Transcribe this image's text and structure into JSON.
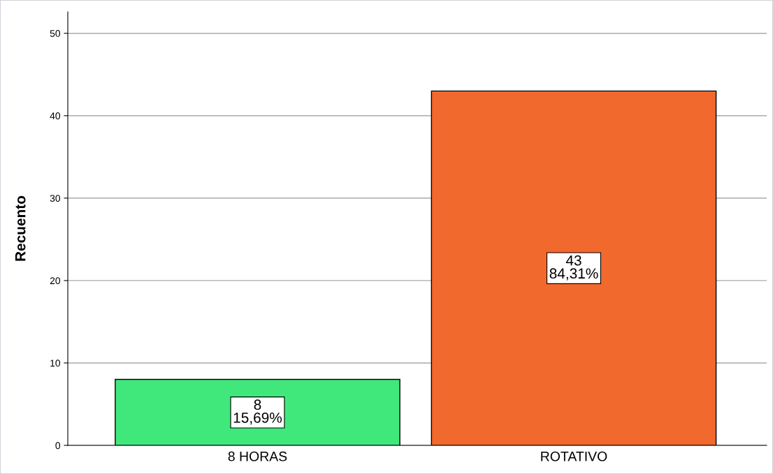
{
  "chart_data": {
    "type": "bar",
    "ylabel": "Recuento",
    "categories": [
      "8 HORAS",
      "ROTATIVO"
    ],
    "values": [
      8,
      43
    ],
    "colors": [
      "#40e87c",
      "#f2692d"
    ],
    "value_labels": [
      "8\n15,69%",
      "43\n84,31%"
    ],
    "ylim": [
      0,
      52.6
    ],
    "yticks": [
      0,
      10,
      20,
      30,
      40,
      50
    ],
    "grid": "y",
    "legend": false
  }
}
